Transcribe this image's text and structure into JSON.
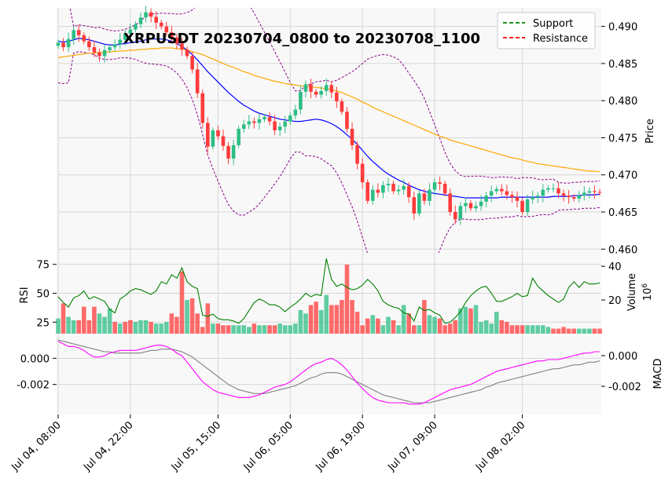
{
  "chart_data": {
    "type": "candlestick",
    "title": "XRPUSDT 20230704_0800 to 20230708_1100",
    "x_tick_labels": [
      "Jul 04, 08:00",
      "Jul 04, 22:00",
      "Jul 05, 15:00",
      "Jul 06, 05:00",
      "Jul 06, 19:00",
      "Jul 07, 09:00",
      "Jul 08, 02:00"
    ],
    "price_panel": {
      "ylabel": "Price",
      "ylim": [
        0.4595,
        0.4925
      ],
      "yticks": [
        "0.460",
        "0.465",
        "0.470",
        "0.475",
        "0.480",
        "0.485",
        "0.490"
      ],
      "legend": [
        {
          "label": "Support",
          "color": "#008000"
        },
        {
          "label": "Resistance",
          "color": "#ff0000"
        }
      ],
      "up_color": "#2ebd85",
      "down_color": "#ff3b3b",
      "ma_short_color": "#0000ff",
      "ma_long_color": "#ffa500",
      "bollinger_color": "#8b008b",
      "close": [
        0.4878,
        0.4872,
        0.4883,
        0.4895,
        0.4888,
        0.488,
        0.4872,
        0.4865,
        0.486,
        0.4868,
        0.4872,
        0.4876,
        0.4882,
        0.489,
        0.4896,
        0.4903,
        0.4912,
        0.4919,
        0.4913,
        0.4905,
        0.49,
        0.4892,
        0.4885,
        0.4877,
        0.4869,
        0.486,
        0.4842,
        0.481,
        0.477,
        0.4738,
        0.476,
        0.4752,
        0.4739,
        0.4722,
        0.474,
        0.4762,
        0.4768,
        0.4772,
        0.477,
        0.4775,
        0.4778,
        0.4772,
        0.476,
        0.4765,
        0.4772,
        0.478,
        0.4788,
        0.4812,
        0.4822,
        0.4812,
        0.4808,
        0.4813,
        0.4821,
        0.4811,
        0.4799,
        0.4785,
        0.4762,
        0.474,
        0.4715,
        0.469,
        0.4665,
        0.468,
        0.4676,
        0.4686,
        0.4688,
        0.4678,
        0.468,
        0.4685,
        0.467,
        0.4648,
        0.4675,
        0.4665,
        0.468,
        0.469,
        0.4688,
        0.4675,
        0.465,
        0.464,
        0.4658,
        0.4662,
        0.4655,
        0.4658,
        0.4664,
        0.4672,
        0.4678,
        0.4681,
        0.4678,
        0.4673,
        0.467,
        0.4665,
        0.465,
        0.4667,
        0.467,
        0.4672,
        0.468,
        0.4682,
        0.4682,
        0.4675,
        0.4672,
        0.467,
        0.4668,
        0.4672,
        0.4676,
        0.4678,
        0.4677,
        0.4676
      ],
      "ma_short": [
        0.488,
        0.4879,
        0.488,
        0.4882,
        0.4884,
        0.4883,
        0.4882,
        0.488,
        0.4878,
        0.4876,
        0.4875,
        0.4875,
        0.4876,
        0.4877,
        0.4878,
        0.4879,
        0.488,
        0.4882,
        0.4883,
        0.4883,
        0.4883,
        0.4882,
        0.488,
        0.4877,
        0.4873,
        0.4868,
        0.4862,
        0.4855,
        0.4847,
        0.4839,
        0.4832,
        0.4825,
        0.4818,
        0.4811,
        0.4805,
        0.4799,
        0.4794,
        0.479,
        0.4786,
        0.4783,
        0.4781,
        0.4779,
        0.4777,
        0.4775,
        0.4774,
        0.4773,
        0.4772,
        0.4772,
        0.4773,
        0.4774,
        0.4775,
        0.4774,
        0.4772,
        0.4769,
        0.4765,
        0.476,
        0.4754,
        0.4748,
        0.4741,
        0.4733,
        0.4725,
        0.4718,
        0.4712,
        0.4706,
        0.4701,
        0.4697,
        0.4693,
        0.469,
        0.4686,
        0.4683,
        0.468,
        0.4678,
        0.4676,
        0.4675,
        0.4674,
        0.4673,
        0.4672,
        0.4671,
        0.467,
        0.4669,
        0.4669,
        0.4669,
        0.4669,
        0.4669,
        0.4669,
        0.4669,
        0.467,
        0.467,
        0.467,
        0.467,
        0.467,
        0.467,
        0.467,
        0.467,
        0.467,
        0.467,
        0.4671,
        0.4671,
        0.4671,
        0.4671,
        0.4672,
        0.4672,
        0.4673,
        0.4673,
        0.4673,
        0.4674
      ],
      "ma_long": [
        0.4858,
        0.4859,
        0.486,
        0.4861,
        0.4862,
        0.4863,
        0.4864,
        0.4864,
        0.4865,
        0.4865,
        0.4866,
        0.4866,
        0.4867,
        0.4867,
        0.4868,
        0.4868,
        0.4869,
        0.4869,
        0.487,
        0.487,
        0.4871,
        0.4871,
        0.4871,
        0.487,
        0.4869,
        0.4868,
        0.4866,
        0.4864,
        0.4862,
        0.4859,
        0.4856,
        0.4853,
        0.485,
        0.4847,
        0.4845,
        0.4842,
        0.4839,
        0.4837,
        0.4834,
        0.4832,
        0.483,
        0.4828,
        0.4826,
        0.4825,
        0.4823,
        0.4822,
        0.4821,
        0.482,
        0.4819,
        0.4818,
        0.4818,
        0.4817,
        0.4816,
        0.4815,
        0.4813,
        0.4811,
        0.4808,
        0.4805,
        0.4802,
        0.4798,
        0.4795,
        0.4791,
        0.4788,
        0.4785,
        0.4782,
        0.4779,
        0.4776,
        0.4773,
        0.477,
        0.4767,
        0.4764,
        0.4761,
        0.4758,
        0.4755,
        0.4752,
        0.475,
        0.4747,
        0.4745,
        0.4743,
        0.4741,
        0.4739,
        0.4737,
        0.4735,
        0.4733,
        0.4731,
        0.4729,
        0.4727,
        0.4725,
        0.4723,
        0.4722,
        0.472,
        0.4718,
        0.4717,
        0.4715,
        0.4714,
        0.4713,
        0.4712,
        0.4711,
        0.471,
        0.4709,
        0.4708,
        0.4707,
        0.4706,
        0.4705,
        0.4705,
        0.4704
      ]
    },
    "rsi_panel": {
      "ylabel": "RSI",
      "ylim": [
        15,
        85
      ],
      "yticks": [
        "25",
        "50",
        "75"
      ],
      "color": "#008000",
      "values": [
        47,
        42,
        38,
        46,
        48,
        52,
        45,
        47,
        45,
        43,
        36,
        33,
        45,
        48,
        52,
        54,
        53,
        51,
        49,
        52,
        60,
        58,
        66,
        63,
        72,
        60,
        56,
        54,
        31,
        30,
        32,
        28,
        27,
        27,
        26,
        24,
        28,
        35,
        42,
        45,
        43,
        40,
        40,
        38,
        34,
        38,
        41,
        45,
        50,
        47,
        49,
        48,
        80,
        62,
        56,
        58,
        55,
        53,
        54,
        57,
        62,
        58,
        52,
        43,
        40,
        38,
        37,
        33,
        32,
        26,
        38,
        35,
        36,
        33,
        31,
        24,
        25,
        29,
        34,
        42,
        48,
        52,
        55,
        56,
        50,
        43,
        43,
        45,
        47,
        50,
        47,
        48,
        63,
        56,
        52,
        48,
        45,
        42,
        45,
        55,
        60,
        55,
        60,
        58,
        58,
        59
      ],
      "volume_ylabel": "Volume",
      "volume_exponent": "10^6",
      "volume_yticks": [
        "20",
        "40"
      ],
      "volume_ylim": [
        0,
        48
      ],
      "volume": [
        9,
        18,
        10,
        8,
        8,
        16,
        8,
        16,
        12,
        10,
        15,
        7,
        6,
        7,
        8,
        7,
        8,
        8,
        7,
        6,
        6,
        7,
        12,
        10,
        37,
        20,
        21,
        12,
        4,
        18,
        6,
        6,
        5,
        5,
        5,
        5,
        5,
        4,
        6,
        5,
        5,
        5,
        5,
        6,
        5,
        5,
        6,
        14,
        12,
        17,
        19,
        14,
        23,
        17,
        17,
        20,
        41,
        20,
        13,
        5,
        9,
        11,
        9,
        5,
        10,
        8,
        5,
        17,
        12,
        5,
        5,
        20,
        11,
        10,
        9,
        5,
        6,
        8,
        15,
        16,
        15,
        17,
        7,
        8,
        6,
        13,
        8,
        7,
        5,
        5,
        5,
        5,
        5,
        5,
        5,
        4,
        3,
        3,
        4,
        3,
        3,
        3,
        3,
        3,
        3,
        3
      ],
      "volume_up": [
        1,
        0,
        1,
        1,
        0,
        0,
        0,
        0,
        1,
        1,
        1,
        0,
        1,
        0,
        0,
        1,
        1,
        1,
        0,
        1,
        1,
        1,
        0,
        0,
        0,
        1,
        0,
        0,
        0,
        0,
        1,
        0,
        0,
        0,
        1,
        1,
        1,
        1,
        0,
        1,
        1,
        0,
        0,
        1,
        1,
        1,
        1,
        1,
        1,
        0,
        0,
        1,
        1,
        0,
        0,
        0,
        0,
        0,
        0,
        0,
        0,
        1,
        0,
        1,
        1,
        0,
        1,
        1,
        0,
        0,
        1,
        0,
        1,
        1,
        0,
        0,
        0,
        0,
        1,
        1,
        0,
        1,
        1,
        1,
        1,
        1,
        0,
        0,
        0,
        0,
        0,
        1,
        1,
        1,
        1,
        1,
        0,
        0,
        0,
        0,
        0,
        1,
        1,
        1,
        0,
        0
      ]
    },
    "macd_panel": {
      "ylabel": "MACD",
      "ylim": [
        -0.0043,
        0.0017
      ],
      "yticks_left": [
        "-0.002",
        "0.000"
      ],
      "yticks_right": [
        "-0.002",
        "0.000"
      ],
      "macd_color": "#ff00ff",
      "signal_color": "#808080",
      "macd": [
        0.0013,
        0.0011,
        0.0009,
        0.0009,
        0.0008,
        0.0006,
        0.0003,
        0.0001,
        0.0001,
        0.0002,
        0.0004,
        0.0005,
        0.0006,
        0.0006,
        0.0006,
        0.0006,
        0.0007,
        0.0008,
        0.0009,
        0.001,
        0.001,
        0.0009,
        0.0007,
        0.0004,
        0.0002,
        -0.0003,
        -0.0008,
        -0.0013,
        -0.0018,
        -0.0021,
        -0.0024,
        -0.0026,
        -0.0027,
        -0.0028,
        -0.0029,
        -0.003,
        -0.003,
        -0.003,
        -0.0029,
        -0.0028,
        -0.0026,
        -0.0024,
        -0.0022,
        -0.0021,
        -0.002,
        -0.0018,
        -0.0015,
        -0.0012,
        -0.0009,
        -0.0006,
        -0.0004,
        -0.0003,
        -0.0001,
        0.0,
        -0.0002,
        -0.0005,
        -0.0009,
        -0.0014,
        -0.0019,
        -0.0023,
        -0.0027,
        -0.003,
        -0.0032,
        -0.0033,
        -0.0034,
        -0.0034,
        -0.0034,
        -0.0034,
        -0.0035,
        -0.0035,
        -0.0035,
        -0.0034,
        -0.0032,
        -0.003,
        -0.0028,
        -0.0026,
        -0.0024,
        -0.0023,
        -0.0022,
        -0.0021,
        -0.002,
        -0.0018,
        -0.0016,
        -0.0014,
        -0.0012,
        -0.001,
        -0.0009,
        -0.0008,
        -0.0007,
        -0.0006,
        -0.0005,
        -0.0004,
        -0.0003,
        -0.0002,
        -0.0002,
        -0.0001,
        -0.0001,
        -0.0001,
        0.0,
        0.0001,
        0.0002,
        0.0003,
        0.0004,
        0.0004,
        0.0005,
        0.0005
      ],
      "signal": [
        0.0014,
        0.0013,
        0.0012,
        0.0011,
        0.001,
        0.0009,
        0.0008,
        0.0007,
        0.0006,
        0.0005,
        0.0005,
        0.0004,
        0.0004,
        0.0004,
        0.0004,
        0.0004,
        0.0004,
        0.0005,
        0.0006,
        0.0006,
        0.0007,
        0.0007,
        0.0007,
        0.0006,
        0.0005,
        0.0003,
        0.0001,
        -0.0002,
        -0.0005,
        -0.0008,
        -0.0011,
        -0.0014,
        -0.0017,
        -0.002,
        -0.0022,
        -0.0024,
        -0.0025,
        -0.0026,
        -0.0027,
        -0.0027,
        -0.0027,
        -0.0026,
        -0.0025,
        -0.0024,
        -0.0023,
        -0.0022,
        -0.0021,
        -0.0019,
        -0.0017,
        -0.0015,
        -0.0014,
        -0.0012,
        -0.0011,
        -0.0011,
        -0.0011,
        -0.0012,
        -0.0014,
        -0.0016,
        -0.0018,
        -0.002,
        -0.0022,
        -0.0024,
        -0.0026,
        -0.0028,
        -0.0029,
        -0.003,
        -0.0031,
        -0.0032,
        -0.0033,
        -0.0034,
        -0.0034,
        -0.0034,
        -0.0034,
        -0.0033,
        -0.0032,
        -0.0031,
        -0.003,
        -0.0029,
        -0.0028,
        -0.0027,
        -0.0026,
        -0.0025,
        -0.0024,
        -0.0022,
        -0.0021,
        -0.0019,
        -0.0018,
        -0.0017,
        -0.0016,
        -0.0015,
        -0.0014,
        -0.0013,
        -0.0012,
        -0.0011,
        -0.001,
        -0.0009,
        -0.0008,
        -0.0008,
        -0.0007,
        -0.0006,
        -0.0005,
        -0.0005,
        -0.0004,
        -0.0003,
        -0.0003,
        -0.0002
      ]
    }
  }
}
